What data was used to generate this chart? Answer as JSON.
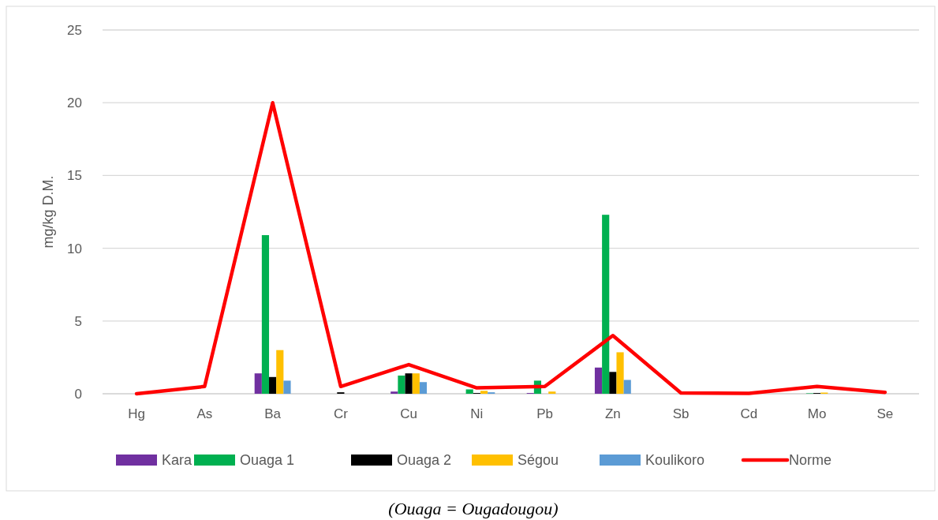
{
  "chart_data": {
    "type": "bar",
    "ylabel": "mg/kg D.M.",
    "categories": [
      "Hg",
      "As",
      "Ba",
      "Cr",
      "Cu",
      "Ni",
      "Pb",
      "Zn",
      "Sb",
      "Cd",
      "Mo",
      "Se"
    ],
    "series": [
      {
        "name": "Kara",
        "color": "#7030a0",
        "values": [
          0,
          0,
          1.4,
          0,
          0.15,
          0,
          0.05,
          1.8,
          0,
          0,
          0,
          0
        ]
      },
      {
        "name": "Ouaga 1",
        "color": "#00b050",
        "values": [
          0,
          0,
          10.9,
          0,
          1.25,
          0.3,
          0.9,
          12.3,
          null,
          0,
          0.03,
          0
        ]
      },
      {
        "name": "Ouaga 2",
        "color": "#000000",
        "values": [
          0,
          0,
          1.15,
          0.1,
          1.4,
          0.05,
          0,
          1.5,
          0,
          0,
          0.05,
          0
        ]
      },
      {
        "name": "Ségou",
        "color": "#ffc000",
        "values": [
          0,
          0,
          3.0,
          0,
          1.4,
          0.2,
          0.15,
          2.85,
          0,
          0,
          0.08,
          0
        ]
      },
      {
        "name": "Koulikoro",
        "color": "#5b9bd5",
        "values": [
          0,
          0,
          0.9,
          0,
          0.8,
          0.1,
          0,
          0.95,
          0,
          0,
          0,
          0
        ]
      },
      {
        "name": "Norme",
        "type": "line",
        "color": "#ff0000",
        "values": [
          0,
          0.5,
          20,
          0.5,
          2,
          0.4,
          0.5,
          4,
          0.05,
          0.03,
          0.5,
          0.1
        ]
      }
    ],
    "ylim": [
      0,
      25
    ],
    "yticks": [
      0,
      5,
      10,
      15,
      20,
      25
    ],
    "grid": "y",
    "legend": "bottom",
    "marker": "none",
    "annotations": [
      "(Ouaga = Ougadougou)"
    ]
  }
}
